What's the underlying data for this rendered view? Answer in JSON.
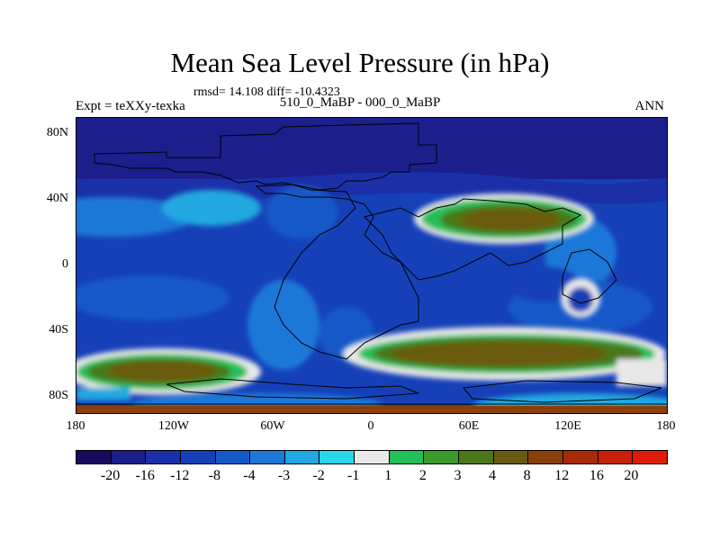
{
  "title": "Mean Sea Level Pressure (in hPa)",
  "stats": "rmsd= 14.108 diff= -10.4323",
  "experiment": "Expt = teXXy-texka",
  "period": "510_0_MaBP - 000_0_MaBP",
  "season": "ANN",
  "lat_labels": [
    "80N",
    "40N",
    "0",
    "40S",
    "80S"
  ],
  "lon_labels": [
    "180",
    "120W",
    "60W",
    "0",
    "60E",
    "120E",
    "180"
  ],
  "colorbar": {
    "labels": [
      "-20",
      "-16",
      "-12",
      "-8",
      "-4",
      "-3",
      "-2",
      "-1",
      "1",
      "2",
      "3",
      "4",
      "8",
      "12",
      "16",
      "20"
    ],
    "colors": [
      "#1a0a5e",
      "#1c1e8c",
      "#1b30a8",
      "#1540b8",
      "#1558c8",
      "#1e78d8",
      "#20a8e0",
      "#28d8e8",
      "#e8e8e8",
      "#22c05a",
      "#3a9a2a",
      "#4a7818",
      "#6a5a10",
      "#8a4008",
      "#a82a08",
      "#c82008",
      "#e01a08"
    ]
  }
}
